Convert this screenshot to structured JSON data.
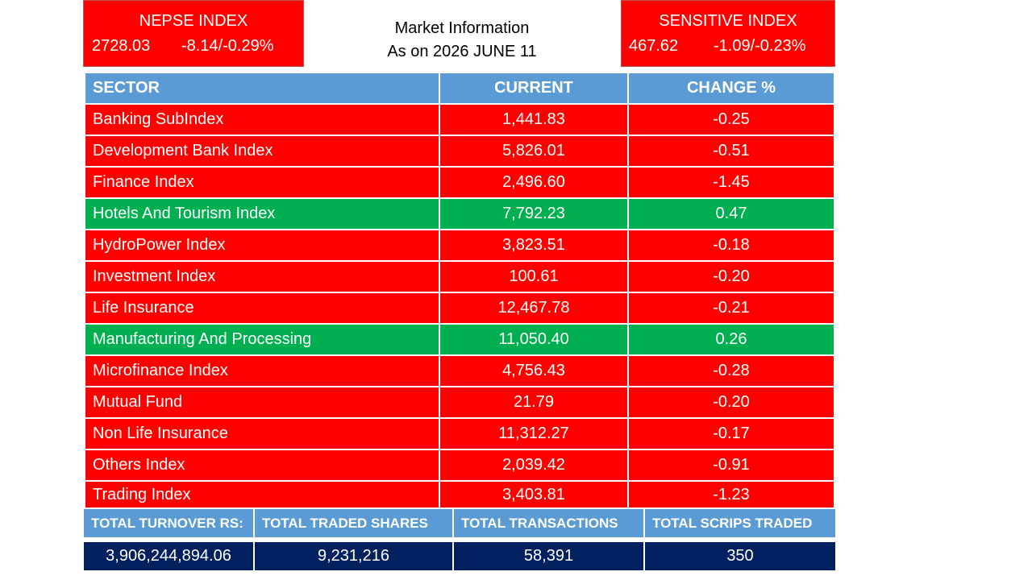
{
  "nepse": {
    "title": "NEPSE INDEX",
    "value": "2728.03",
    "change": "-8.14/-0.29%"
  },
  "header": {
    "title": "Market Information",
    "date": "As on 2026 JUNE 11"
  },
  "sensitive": {
    "title": "SENSITIVE INDEX",
    "value": "467.62",
    "change": "-1.09/-0.23%"
  },
  "table": {
    "columns": [
      "SECTOR",
      "CURRENT",
      "CHANGE %"
    ],
    "rows": [
      [
        "Banking SubIndex",
        "1,441.83",
        "-0.25"
      ],
      [
        "Development Bank Index",
        "5,826.01",
        "-0.51"
      ],
      [
        "Finance Index",
        "2,496.60",
        "-1.45"
      ],
      [
        "Hotels And Tourism Index",
        "7,792.23",
        "0.47"
      ],
      [
        "HydroPower Index",
        "3,823.51",
        "-0.18"
      ],
      [
        "Investment Index",
        "100.61",
        "-0.20"
      ],
      [
        "Life Insurance",
        "12,467.78",
        "-0.21"
      ],
      [
        "Manufacturing And Processing",
        "11,050.40",
        "0.26"
      ],
      [
        "Microfinance Index",
        "4,756.43",
        "-0.28"
      ],
      [
        "Mutual Fund",
        "21.79",
        "-0.20"
      ],
      [
        "Non Life Insurance",
        "11,312.27",
        "-0.17"
      ],
      [
        "Others Index",
        "2,039.42",
        "-0.91"
      ],
      [
        "Trading Index",
        "3,403.81",
        "-1.23"
      ]
    ]
  },
  "summary": {
    "columns": [
      "TOTAL TURNOVER RS:",
      "TOTAL TRADED SHARES",
      "TOTAL TRANSACTIONS",
      "TOTAL SCRIPS TRADED"
    ],
    "values": [
      "3,906,244,894.06",
      "9,231,216",
      "58,391",
      "350"
    ]
  }
}
